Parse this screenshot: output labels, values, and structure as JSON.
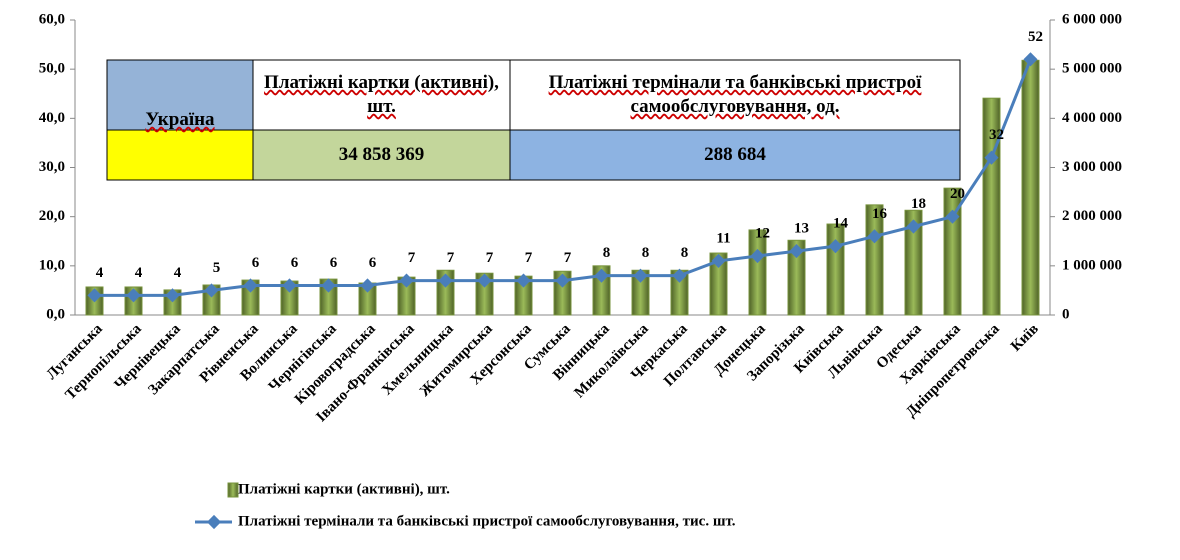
{
  "chart_data": {
    "type": "bar-line",
    "categories": [
      "Луганська",
      "Тернопільська",
      "Чернівецька",
      "Закарпатська",
      "Рівненська",
      "Волинська",
      "Чернігівська",
      "Кіровоградська",
      "Івано-Франківська",
      "Хмельницька",
      "Житомирська",
      "Херсонська",
      "Сумська",
      "Вінницька",
      "Миколаївська",
      "Черкаська",
      "Полтавська",
      "Донецька",
      "Запорізька",
      "Київська",
      "Львівська",
      "Одеська",
      "Харківська",
      "Дніпропетровська",
      "Київ"
    ],
    "series": [
      {
        "name": "Платіжні картки (активні), шт.",
        "type": "bar",
        "color": "#77933c",
        "values": [
          5.7,
          5.7,
          5.1,
          6.1,
          7.1,
          6.9,
          7.3,
          6.5,
          7.7,
          9.1,
          8.5,
          7.9,
          8.9,
          10.0,
          9.1,
          9.1,
          12.6,
          17.3,
          15.2,
          18.5,
          22.4,
          21.3,
          25.8,
          44.1,
          51.8
        ]
      },
      {
        "name": "Платіжні термінали та банківські пристрої самообслуговування, тис. шт.",
        "type": "line",
        "axis": "y2",
        "color": "#4a7ebb",
        "values": [
          400000,
          400000,
          400000,
          500000,
          600000,
          600000,
          600000,
          600000,
          700000,
          700000,
          700000,
          700000,
          700000,
          800000,
          800000,
          800000,
          1100000,
          1200000,
          1300000,
          1400000,
          1600000,
          1800000,
          2000000,
          3200000,
          5200000
        ],
        "value_labels": [
          "4",
          "4",
          "4",
          "5",
          "6",
          "6",
          "6",
          "6",
          "7",
          "7",
          "7",
          "7",
          "7",
          "8",
          "8",
          "8",
          "11",
          "12",
          "13",
          "14",
          "16",
          "18",
          "20",
          "32",
          "52"
        ]
      }
    ],
    "ylim": [
      0,
      60
    ],
    "yticks": [
      {
        "value": 0,
        "label": "0,0"
      },
      {
        "value": 10,
        "label": "10,0"
      },
      {
        "value": 20,
        "label": "20,0"
      },
      {
        "value": 30,
        "label": "30,0"
      },
      {
        "value": 40,
        "label": "40,0"
      },
      {
        "value": 50,
        "label": "50,0"
      },
      {
        "value": 60,
        "label": "60,0"
      }
    ],
    "y2lim": [
      0,
      6000000
    ],
    "y2ticks": [
      0,
      {
        "value": 1000000,
        "label": "1 000 000"
      },
      {
        "value": 2000000,
        "label": "2 000 000"
      },
      {
        "value": 3000000,
        "label": "3 000 000"
      },
      {
        "value": 4000000,
        "label": "4 000 000"
      },
      {
        "value": 5000000,
        "label": "5 000 000"
      },
      {
        "value": 6000000,
        "label": "6 000 000"
      }
    ],
    "legend": "bottom",
    "inset_table": {
      "header": [
        "Україна",
        "Платіжні картки (активні), шт.",
        "Платіжні термінали та банківські пристрої самообслуговування, од."
      ],
      "row": [
        "34 858 369",
        "288 684"
      ]
    }
  }
}
